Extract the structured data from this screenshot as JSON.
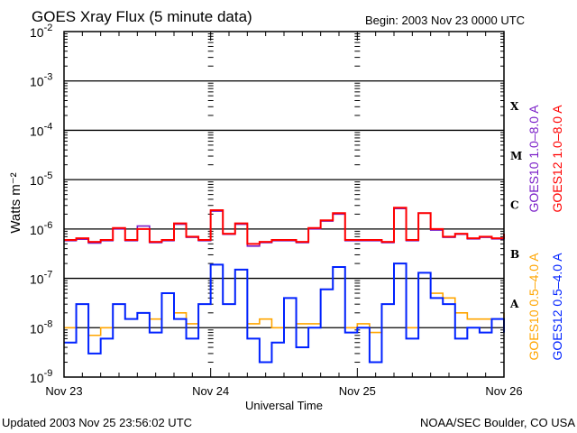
{
  "header": {
    "title": "GOES Xray Flux (5 minute data)",
    "begin": "Begin:  2003 Nov 23 0000 UTC"
  },
  "footer": {
    "updated": "Updated 2003 Nov 25 23:56:02 UTC",
    "source": "NOAA/SEC Boulder, CO USA"
  },
  "flare_classes": [
    "X",
    "M",
    "C",
    "B",
    "A"
  ],
  "legend": {
    "goes10_long": "GOES10 1.0–8.0 A",
    "goes12_long": "GOES12 1.0–8.0 A",
    "goes10_short": "GOES10 0.5–4.0 A",
    "goes12_short": "GOES12 0.5–4.0 A"
  },
  "chart_data": {
    "type": "line",
    "title": "GOES Xray Flux (5 minute data)",
    "xlabel": "Universal Time",
    "ylabel": "Watts m⁻²",
    "yscale": "log",
    "ylim": [
      1e-09,
      0.01
    ],
    "xlim": [
      "2003-11-23T00:00",
      "2003-11-26T00:00"
    ],
    "x_tick_labels": [
      "Nov 23",
      "Nov 24",
      "Nov 25",
      "Nov 26"
    ],
    "y_tick_labels": [
      {
        "base": "10",
        "exp": "-2"
      },
      {
        "base": "10",
        "exp": "-3"
      },
      {
        "base": "10",
        "exp": "-4"
      },
      {
        "base": "10",
        "exp": "-5"
      },
      {
        "base": "10",
        "exp": "-6"
      },
      {
        "base": "10",
        "exp": "-7"
      },
      {
        "base": "10",
        "exp": "-8"
      },
      {
        "base": "10",
        "exp": "-9"
      }
    ],
    "grid": "horizontal lines at each decade",
    "legend_placement": "right, vertical text",
    "x": [
      "2003-11-23T00:00",
      "2003-11-23T02:00",
      "2003-11-23T04:00",
      "2003-11-23T06:00",
      "2003-11-23T08:00",
      "2003-11-23T10:00",
      "2003-11-23T12:00",
      "2003-11-23T14:00",
      "2003-11-23T16:00",
      "2003-11-23T18:00",
      "2003-11-23T20:00",
      "2003-11-23T22:00",
      "2003-11-24T00:00",
      "2003-11-24T02:00",
      "2003-11-24T04:00",
      "2003-11-24T06:00",
      "2003-11-24T08:00",
      "2003-11-24T10:00",
      "2003-11-24T12:00",
      "2003-11-24T14:00",
      "2003-11-24T16:00",
      "2003-11-24T18:00",
      "2003-11-24T20:00",
      "2003-11-24T22:00",
      "2003-11-25T00:00",
      "2003-11-25T02:00",
      "2003-11-25T04:00",
      "2003-11-25T06:00",
      "2003-11-25T08:00",
      "2003-11-25T10:00",
      "2003-11-25T12:00",
      "2003-11-25T14:00",
      "2003-11-25T16:00",
      "2003-11-25T18:00",
      "2003-11-25T20:00",
      "2003-11-25T22:00",
      "2003-11-26T00:00"
    ],
    "series": [
      {
        "name": "GOES10 1.0–8.0 A",
        "color": "#7a1fc8",
        "values": [
          5.8e-07,
          6.2e-07,
          5.2e-07,
          5.8e-07,
          1e-06,
          5.8e-07,
          1.15e-06,
          5.3e-07,
          5.8e-07,
          1.25e-06,
          6.8e-07,
          5.8e-07,
          2.3e-06,
          7.8e-07,
          1.25e-06,
          4.5e-07,
          5.3e-07,
          5.8e-07,
          5.8e-07,
          5.3e-07,
          1e-06,
          1.45e-06,
          2e-06,
          5.8e-07,
          5.8e-07,
          5.8e-07,
          5.3e-07,
          2.6e-06,
          5.8e-07,
          2.1e-06,
          9.5e-07,
          6.8e-07,
          7.8e-07,
          6.3e-07,
          6.8e-07,
          6.3e-07,
          7.8e-07
        ]
      },
      {
        "name": "GOES12 1.0–8.0 A",
        "color": "#ff0000",
        "values": [
          6e-07,
          6.5e-07,
          5.5e-07,
          6e-07,
          1.05e-06,
          6e-07,
          1e-06,
          5.5e-07,
          6e-07,
          1.3e-06,
          7e-07,
          6e-07,
          2.4e-06,
          8e-07,
          1.3e-06,
          5e-07,
          5.5e-07,
          6e-07,
          6e-07,
          5.5e-07,
          1.05e-06,
          1.5e-06,
          2.1e-06,
          6e-07,
          6e-07,
          6e-07,
          5.5e-07,
          2.7e-06,
          6e-07,
          2.1e-06,
          1e-06,
          7e-07,
          8e-07,
          6.5e-07,
          7e-07,
          6.5e-07,
          8e-07
        ]
      },
      {
        "name": "GOES10 0.5–4.0 A",
        "color": "#ffa500",
        "values": [
          1e-08,
          3e-08,
          7e-09,
          1e-08,
          3e-08,
          1.5e-08,
          2e-08,
          1.5e-08,
          5e-08,
          2e-08,
          1.2e-08,
          3e-08,
          1.9e-07,
          3e-08,
          1.5e-07,
          1.2e-08,
          1.5e-08,
          1e-08,
          4e-08,
          1.2e-08,
          1.2e-08,
          6e-08,
          1.7e-07,
          1e-08,
          1.2e-08,
          8e-09,
          3e-08,
          2e-07,
          1e-08,
          1.3e-07,
          5e-08,
          4e-08,
          2e-08,
          1.5e-08,
          1.5e-08,
          1.5e-08,
          2e-08
        ]
      },
      {
        "name": "GOES12 0.5–4.0 A",
        "color": "#0022ff",
        "values": [
          5e-09,
          3e-08,
          3e-09,
          6e-09,
          3e-08,
          1.5e-08,
          2e-08,
          8e-09,
          5e-08,
          1.5e-08,
          6e-09,
          3e-08,
          1.9e-07,
          3e-08,
          1.5e-07,
          6e-09,
          2e-09,
          5e-09,
          4e-08,
          4e-09,
          1e-08,
          6e-08,
          1.7e-07,
          8e-09,
          1e-08,
          2e-09,
          3e-08,
          2e-07,
          6e-09,
          1.3e-07,
          4e-08,
          3e-08,
          6e-09,
          1e-08,
          8e-09,
          1.5e-08,
          8e-09
        ]
      }
    ]
  }
}
